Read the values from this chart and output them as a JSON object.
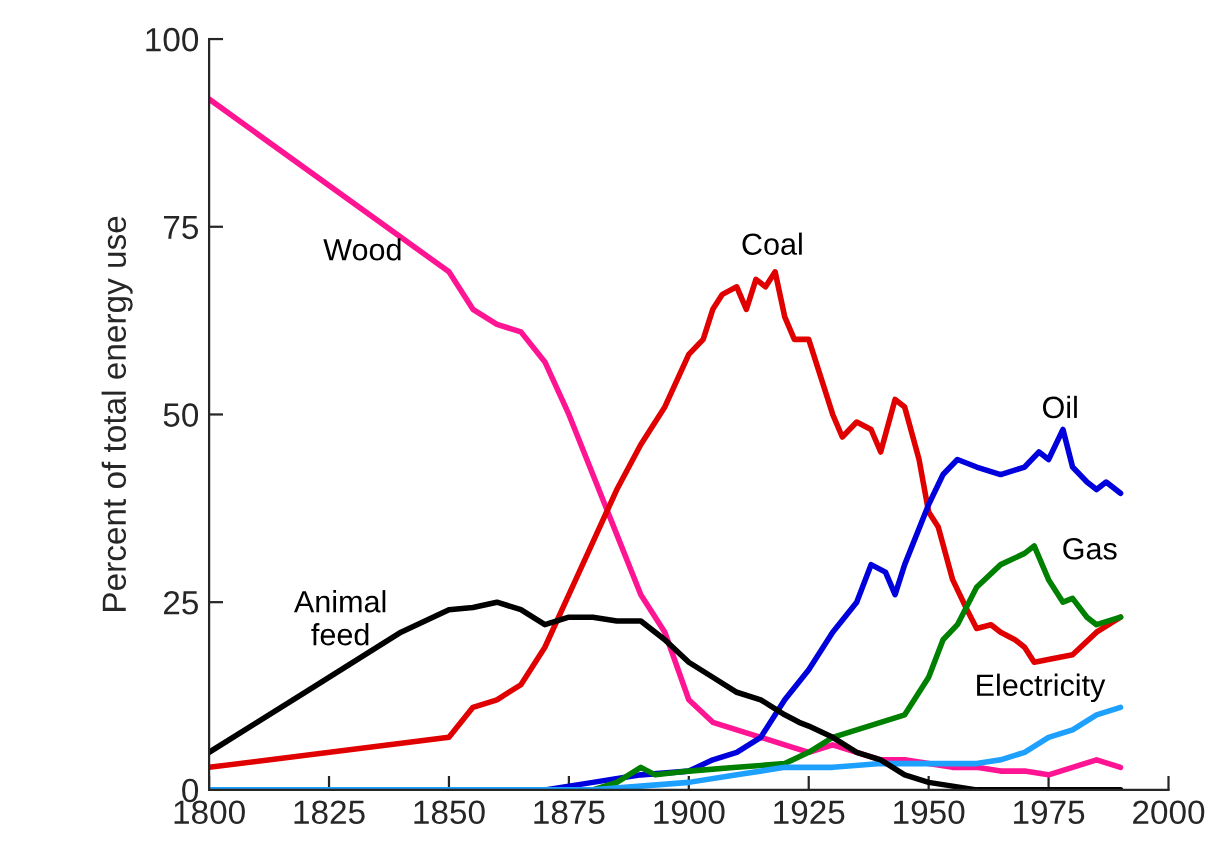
{
  "chart_data": {
    "type": "line",
    "ylabel": "Percent of total energy use",
    "xlim": [
      1800,
      2000
    ],
    "xticks": [
      1800,
      1825,
      1850,
      1875,
      1900,
      1925,
      1950,
      1975,
      2000
    ],
    "ylim": [
      0,
      100
    ],
    "yticks": [
      0,
      25,
      50,
      75,
      100
    ],
    "grid": false,
    "legend": false,
    "marker": "none",
    "line_style": "solid",
    "series": [
      {
        "name": "Wood",
        "color": "#ff1493",
        "x": [
          1800,
          1850,
          1855,
          1860,
          1865,
          1870,
          1875,
          1880,
          1885,
          1890,
          1895,
          1900,
          1905,
          1910,
          1915,
          1920,
          1925,
          1930,
          1935,
          1940,
          1945,
          1950,
          1955,
          1960,
          1965,
          1970,
          1975,
          1980,
          1985,
          1990
        ],
        "values": [
          92,
          69,
          64,
          62,
          61,
          57,
          50,
          42,
          34,
          26,
          21,
          12,
          9,
          8,
          7,
          6,
          5,
          6,
          5,
          4,
          4,
          3.5,
          3,
          3,
          2.5,
          2.5,
          2,
          3,
          4,
          3
        ]
      },
      {
        "name": "Coal",
        "color": "#e00000",
        "x": [
          1800,
          1850,
          1855,
          1860,
          1865,
          1870,
          1875,
          1880,
          1885,
          1890,
          1895,
          1900,
          1903,
          1905,
          1907,
          1910,
          1912,
          1914,
          1916,
          1918,
          1920,
          1922,
          1925,
          1930,
          1932,
          1935,
          1938,
          1940,
          1943,
          1945,
          1948,
          1950,
          1952,
          1955,
          1958,
          1960,
          1963,
          1965,
          1968,
          1970,
          1972,
          1976,
          1980,
          1985,
          1990
        ],
        "values": [
          3,
          7,
          11,
          12,
          14,
          19,
          26,
          33,
          40,
          46,
          51,
          58,
          60,
          64,
          66,
          67,
          64,
          68,
          67,
          69,
          63,
          60,
          60,
          50,
          47,
          49,
          48,
          45,
          52,
          51,
          44,
          37,
          35,
          28,
          24,
          21.5,
          22,
          21,
          20,
          19,
          17,
          17.5,
          18,
          21,
          23
        ]
      },
      {
        "name": "Oil",
        "color": "#0000dd",
        "x": [
          1800,
          1870,
          1880,
          1890,
          1900,
          1905,
          1910,
          1915,
          1920,
          1925,
          1930,
          1935,
          1938,
          1941,
          1943,
          1945,
          1950,
          1953,
          1956,
          1960,
          1965,
          1970,
          1973,
          1975,
          1978,
          1980,
          1983,
          1985,
          1987,
          1990
        ],
        "values": [
          0,
          0,
          1,
          2,
          2.5,
          4,
          5,
          7,
          12,
          16,
          21,
          25,
          30,
          29,
          26,
          30,
          38,
          42,
          44,
          43,
          42,
          43,
          45,
          44,
          48,
          43,
          41,
          40,
          41,
          39.5
        ]
      },
      {
        "name": "Gas",
        "color": "#008000",
        "x": [
          1800,
          1880,
          1885,
          1890,
          1893,
          1900,
          1910,
          1920,
          1925,
          1930,
          1935,
          1940,
          1945,
          1950,
          1953,
          1956,
          1960,
          1965,
          1970,
          1972,
          1975,
          1978,
          1980,
          1983,
          1985,
          1990
        ],
        "values": [
          0,
          0,
          1,
          3,
          2,
          2.5,
          3,
          3.5,
          5,
          7,
          8,
          9,
          10,
          15,
          20,
          22,
          27,
          30,
          31.5,
          32.5,
          28,
          25,
          25.5,
          23,
          22,
          23
        ]
      },
      {
        "name": "Electricity",
        "color": "#1ea0ff",
        "x": [
          1800,
          1880,
          1900,
          1910,
          1920,
          1930,
          1940,
          1950,
          1960,
          1965,
          1970,
          1975,
          1980,
          1985,
          1990
        ],
        "values": [
          0,
          0,
          1,
          2,
          3,
          3,
          3.5,
          3.5,
          3.5,
          4,
          5,
          7,
          8,
          10,
          11
        ]
      },
      {
        "name": "Animal\nfeed",
        "color": "#000000",
        "x": [
          1800,
          1820,
          1840,
          1850,
          1855,
          1860,
          1865,
          1870,
          1875,
          1880,
          1885,
          1890,
          1895,
          1900,
          1905,
          1910,
          1915,
          1920,
          1923,
          1925,
          1930,
          1935,
          1940,
          1945,
          1950,
          1955,
          1960,
          1990
        ],
        "values": [
          5,
          13,
          21,
          24,
          24.3,
          25,
          24,
          22,
          23,
          23,
          22.5,
          22.5,
          20,
          17,
          15,
          13,
          12,
          10,
          9,
          8.5,
          7,
          5,
          4,
          2,
          1,
          0.5,
          0,
          0
        ]
      }
    ]
  }
}
